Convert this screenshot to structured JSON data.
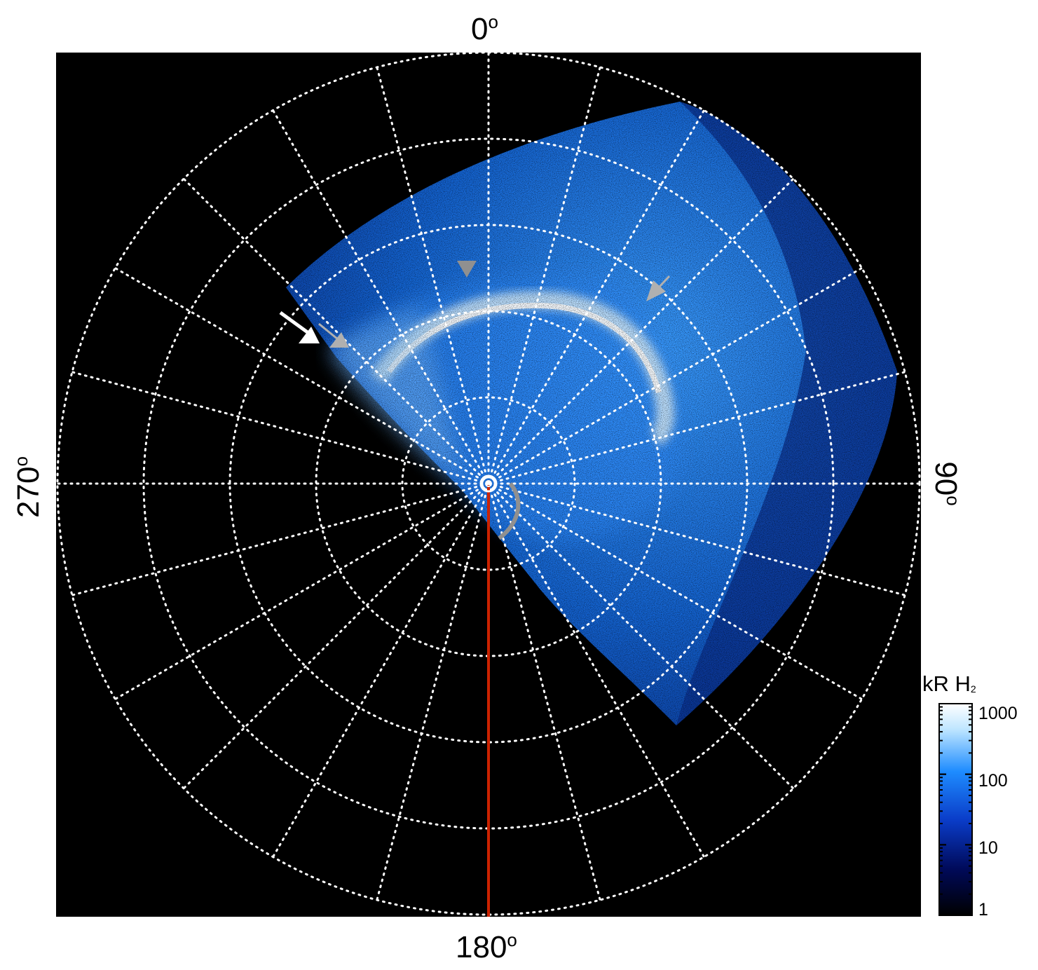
{
  "labels": {
    "top": "0",
    "bottom": "180",
    "left": "270",
    "right": "90",
    "degree_symbol": "o"
  },
  "colorbar": {
    "title_main": "kR H",
    "title_sub": "2",
    "ticks": [
      "1000",
      "100",
      "10",
      "1"
    ],
    "scale": "log",
    "colors": [
      "#000000",
      "#000a5a",
      "#0a3cc8",
      "#1e8cff",
      "#bfe6ff",
      "#ffffff"
    ]
  },
  "colors": {
    "background": "#000000",
    "grid": "#ffffff",
    "meridian_line": "#cc2200",
    "arrow_primary": "#ffffff",
    "arrow_secondary": "#b0b0b0",
    "arc_marker": "#909090"
  },
  "grid": {
    "rings": 5,
    "meridian_step_deg": 15
  }
}
